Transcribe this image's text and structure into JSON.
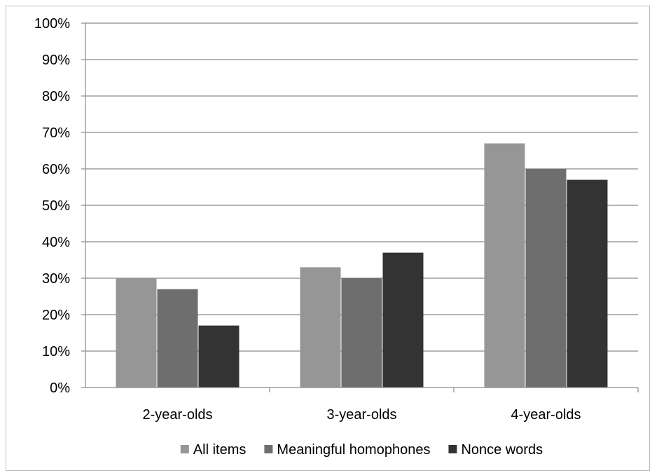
{
  "chart_data": {
    "type": "bar",
    "title": "",
    "xlabel": "",
    "ylabel": "",
    "ylim": [
      0,
      100
    ],
    "y_tick_step": 10,
    "y_tick_suffix": "%",
    "grid": true,
    "legend_position": "bottom",
    "categories": [
      "2-year-olds",
      "3-year-olds",
      "4-year-olds"
    ],
    "series": [
      {
        "name": "All items",
        "color": "#969696",
        "values": [
          30,
          33,
          67
        ]
      },
      {
        "name": "Meaningful homophones",
        "color": "#6e6e6e",
        "values": [
          27,
          30,
          60
        ]
      },
      {
        "name": "Nonce words",
        "color": "#333333",
        "values": [
          17,
          37,
          57
        ]
      }
    ]
  }
}
